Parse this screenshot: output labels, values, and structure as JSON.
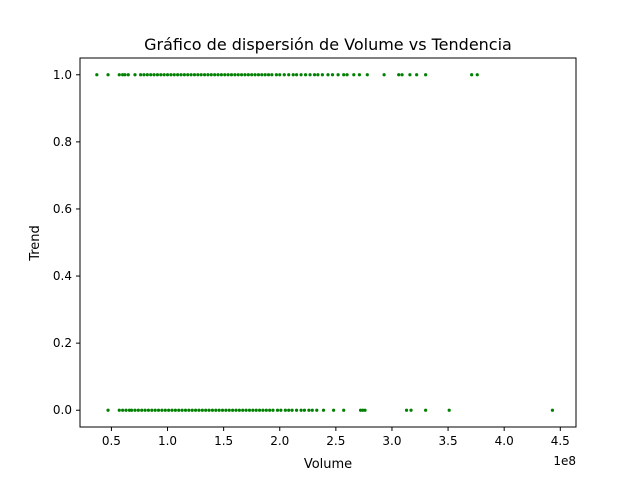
{
  "chart_data": {
    "type": "scatter",
    "title": "Gráfico de dispersión de Volume vs Tendencia",
    "xlabel": "Volume",
    "ylabel": "Trend",
    "x_offset_label": "1e8",
    "xlim": [
      22000000.0,
      464000000.0
    ],
    "ylim": [
      -0.05,
      1.05
    ],
    "xticks": [
      50000000.0,
      100000000.0,
      150000000.0,
      200000000.0,
      250000000.0,
      300000000.0,
      350000000.0,
      400000000.0,
      450000000.0
    ],
    "xtick_labels": [
      "0.5",
      "1.0",
      "1.5",
      "2.0",
      "2.5",
      "3.0",
      "3.5",
      "4.0",
      "4.5"
    ],
    "yticks": [
      0.0,
      0.2,
      0.4,
      0.6,
      0.8,
      1.0
    ],
    "ytick_labels": [
      "0.0",
      "0.2",
      "0.4",
      "0.6",
      "0.8",
      "1.0"
    ],
    "grid": false,
    "marker_color": "#008000",
    "series": [
      {
        "trend": 1,
        "x": [
          37000000.0,
          47000000.0,
          57000000.0,
          60000000.0,
          62000000.0,
          65000000.0,
          71000000.0,
          76000000.0,
          79000000.0,
          82000000.0,
          85000000.0,
          88000000.0,
          91000000.0,
          94000000.0,
          97000000.0,
          100000000.0,
          103000000.0,
          106000000.0,
          109000000.0,
          112000000.0,
          115000000.0,
          118000000.0,
          121000000.0,
          124000000.0,
          127000000.0,
          130000000.0,
          133000000.0,
          136000000.0,
          139000000.0,
          142000000.0,
          145000000.0,
          148000000.0,
          151000000.0,
          154000000.0,
          157000000.0,
          160000000.0,
          163000000.0,
          166000000.0,
          169000000.0,
          172000000.0,
          175000000.0,
          178000000.0,
          181000000.0,
          184000000.0,
          187000000.0,
          190000000.0,
          193000000.0,
          197000000.0,
          200000000.0,
          204000000.0,
          208000000.0,
          212000000.0,
          215000000.0,
          219000000.0,
          223000000.0,
          227000000.0,
          231000000.0,
          234000000.0,
          238000000.0,
          243000000.0,
          247000000.0,
          252000000.0,
          257000000.0,
          260000000.0,
          266000000.0,
          271000000.0,
          278000000.0,
          293000000.0,
          306000000.0,
          309000000.0,
          316000000.0,
          322000000.0,
          330000000.0,
          371000000.0,
          376000000.0
        ]
      },
      {
        "trend": 0,
        "x": [
          47000000.0,
          57000000.0,
          60000000.0,
          63000000.0,
          66000000.0,
          68000000.0,
          71000000.0,
          74000000.0,
          77000000.0,
          80000000.0,
          83000000.0,
          86000000.0,
          89000000.0,
          92000000.0,
          95000000.0,
          98000000.0,
          101000000.0,
          104000000.0,
          107000000.0,
          110000000.0,
          113000000.0,
          116000000.0,
          119000000.0,
          122000000.0,
          125000000.0,
          128000000.0,
          131000000.0,
          134000000.0,
          137000000.0,
          140000000.0,
          143000000.0,
          146000000.0,
          149000000.0,
          152000000.0,
          155000000.0,
          158000000.0,
          161000000.0,
          164000000.0,
          167000000.0,
          170000000.0,
          173000000.0,
          176000000.0,
          179000000.0,
          182000000.0,
          185000000.0,
          188000000.0,
          191000000.0,
          194000000.0,
          198000000.0,
          201000000.0,
          205000000.0,
          208000000.0,
          211000000.0,
          215000000.0,
          219000000.0,
          222000000.0,
          226000000.0,
          229000000.0,
          233000000.0,
          239000000.0,
          248000000.0,
          257000000.0,
          272000000.0,
          274000000.0,
          276000000.0,
          313000000.0,
          317000000.0,
          330000000.0,
          351000000.0,
          443000000.0
        ]
      }
    ]
  }
}
